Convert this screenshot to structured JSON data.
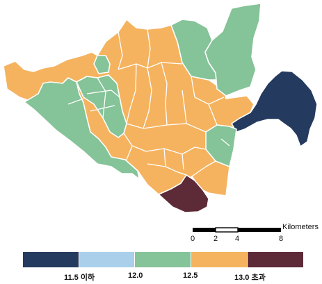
{
  "colors": {
    "bin1": "#243a5e",
    "bin2": "#a9cfea",
    "bin3": "#85c398",
    "bin4": "#f5b35f",
    "bin5": "#5d2a37",
    "border": "#ffffff"
  },
  "scale_bar": {
    "unit": "Kilometers",
    "ticks": [
      "0",
      "2",
      "4",
      "8"
    ]
  },
  "legend": {
    "bins": [
      {
        "class": "bin1",
        "color": "#243a5e"
      },
      {
        "class": "bin2",
        "color": "#a9cfea"
      },
      {
        "class": "bin3",
        "color": "#85c398"
      },
      {
        "class": "bin4",
        "color": "#f5b35f"
      },
      {
        "class": "bin5",
        "color": "#5d2a37"
      }
    ],
    "breaks": [
      "11.5 이하",
      "12.0",
      "12.5",
      "13.0 초과"
    ]
  }
}
